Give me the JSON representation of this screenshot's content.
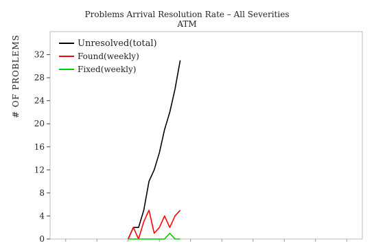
{
  "chart_data": {
    "type": "line",
    "title": "Problems Arrival Resolution Rate – All Severities",
    "subtitle": "ATM",
    "xlabel": "",
    "ylabel": "# OF PROBLEMS",
    "x": [
      0,
      1,
      2,
      3,
      4,
      5,
      6,
      7,
      8,
      9,
      10,
      11,
      12,
      13,
      14,
      15,
      16,
      17,
      18,
      19,
      20,
      21,
      22,
      23,
      24,
      25
    ],
    "xlim": [
      0,
      60
    ],
    "ylim": [
      0,
      36
    ],
    "yticks": [
      0,
      4,
      8,
      12,
      16,
      20,
      24,
      28,
      32
    ],
    "xticks": [
      3,
      9,
      15,
      21,
      27,
      33,
      39,
      45,
      51,
      57
    ],
    "legend_position": "top-left",
    "grid": false,
    "series": [
      {
        "name": "Unresolved(total)",
        "color": "#000000",
        "x": [
          15,
          16,
          17,
          18,
          19,
          20,
          21,
          22,
          23,
          24,
          25
        ],
        "values": [
          0,
          2,
          2,
          5,
          10,
          12,
          15,
          19,
          22,
          26,
          31
        ]
      },
      {
        "name": "Found(weekly)",
        "color": "#ff0000",
        "x": [
          15,
          16,
          17,
          18,
          19,
          20,
          21,
          22,
          23,
          24,
          25
        ],
        "values": [
          0,
          2,
          0,
          3,
          5,
          1,
          2,
          4,
          2,
          4,
          5
        ]
      },
      {
        "name": "Fixed(weekly)",
        "color": "#00cc00",
        "x": [
          15,
          16,
          17,
          18,
          19,
          20,
          21,
          22,
          23,
          24,
          25
        ],
        "values": [
          0,
          0,
          0,
          0,
          0,
          0,
          0,
          0,
          1,
          0,
          0
        ]
      }
    ]
  }
}
